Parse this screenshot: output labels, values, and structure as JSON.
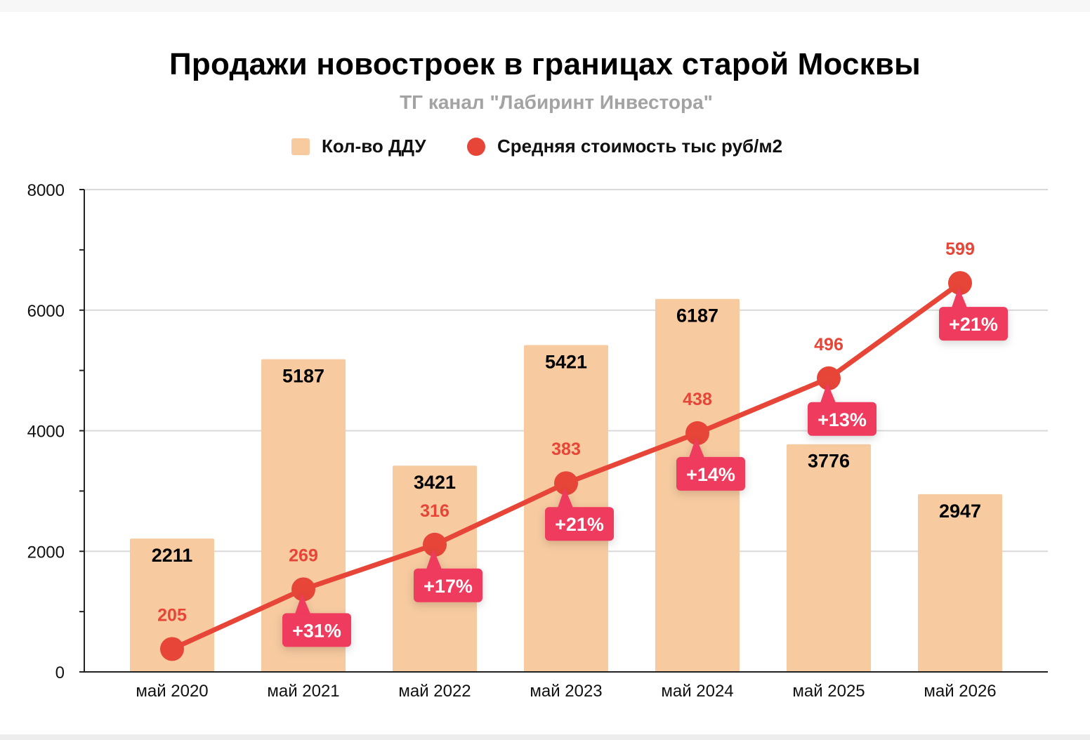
{
  "title": "Продажи новостроек в границах старой Москвы",
  "subtitle": "ТГ канал \"Лабиринт Инвестора\"",
  "legend": {
    "bars_label": "Кол-во ДДУ",
    "line_label": "Средняя стоимость тыс руб/м2"
  },
  "colors": {
    "bar": "#f7caa0",
    "line": "#e64537",
    "badge": "#ef3a5d",
    "grid": "#d9d9d9",
    "axis": "#222222"
  },
  "chart_data": {
    "type": "bar",
    "title": "Продажи новостроек в границах старой Москвы",
    "subtitle": "ТГ канал \"Лабиринт Инвестора\"",
    "categories": [
      "май 2020",
      "май 2021",
      "май 2022",
      "май 2023",
      "май 2024",
      "май 2025",
      "май 2026"
    ],
    "ylim": [
      0,
      8000
    ],
    "yticks": [
      0,
      2000,
      4000,
      6000,
      8000
    ],
    "grid": true,
    "legend_position": "top-center",
    "series": [
      {
        "name": "Кол-во ДДУ",
        "type": "bar",
        "values": [
          2211,
          5187,
          3421,
          5421,
          6187,
          3776,
          2947
        ],
        "labels": [
          "2211",
          "5187",
          "3421",
          "5421",
          "6187",
          "3776",
          "2947"
        ]
      },
      {
        "name": "Средняя стоимость тыс руб/м2",
        "type": "line",
        "values": [
          205,
          269,
          316,
          383,
          438,
          496,
          599
        ],
        "plot_values": [
          380,
          1370,
          2110,
          3130,
          3960,
          4870,
          6450
        ],
        "labels": [
          "205",
          "269",
          "316",
          "383",
          "438",
          "496",
          "599"
        ],
        "changes": [
          "",
          "+31%",
          "+17%",
          "+21%",
          "+14%",
          "+13%",
          "+21%"
        ]
      }
    ]
  }
}
